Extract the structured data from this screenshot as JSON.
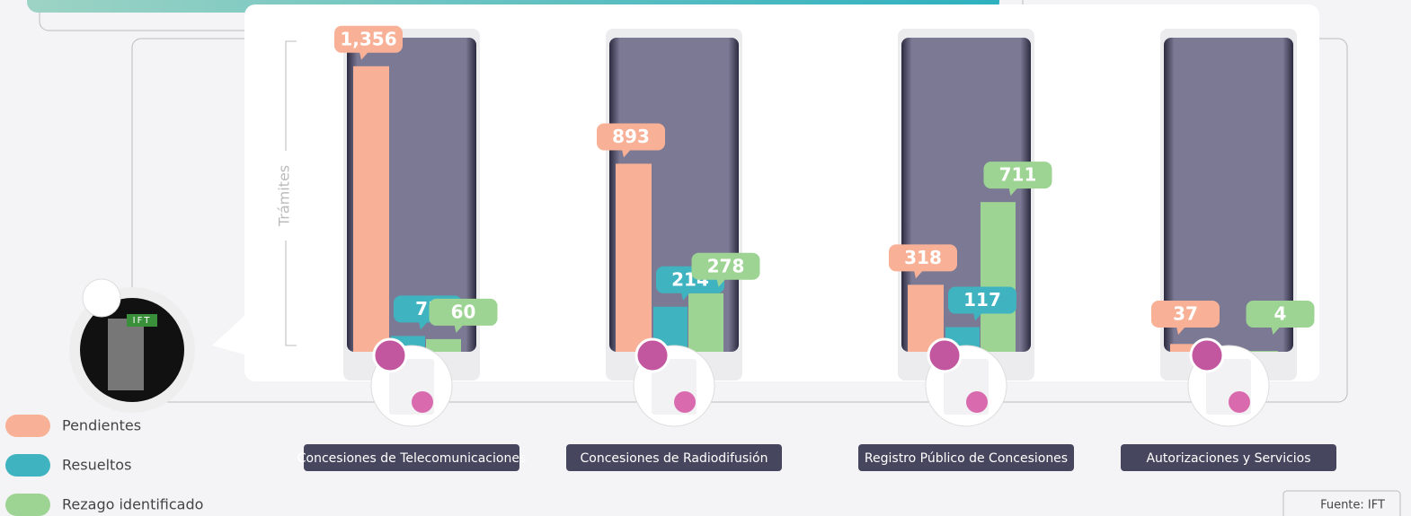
{
  "chart_data": {
    "type": "bar",
    "y_axis_label": "Trámites",
    "categories": [
      "Concesiones de Telecomunicaciones",
      "Concesiones de Radiodifusión",
      "Registro Público de Concesiones",
      "Autorizaciones y Servicios"
    ],
    "series": [
      {
        "name": "Pendientes",
        "color": "#f8b196",
        "values": [
          1356,
          893,
          318,
          37
        ],
        "value_labels": [
          "1,356",
          "893",
          "318",
          "37"
        ]
      },
      {
        "name": "Resueltos",
        "color": "#3fb4c0",
        "values": [
          75,
          214,
          117,
          null
        ]
      },
      {
        "name": "Rezago identificado",
        "color": "#9ed493",
        "values": [
          60,
          278,
          711,
          4
        ]
      }
    ],
    "ylim": [
      0,
      1500
    ],
    "badge": "IFT",
    "source": "Fuente: IFT"
  }
}
